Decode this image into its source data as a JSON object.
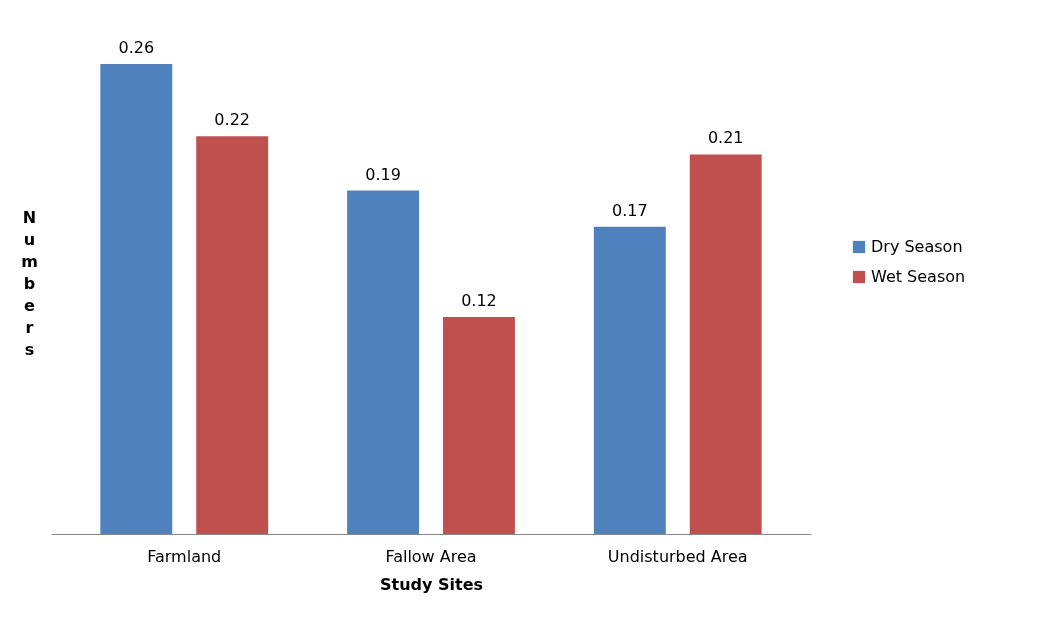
{
  "chart_data": {
    "type": "bar",
    "xlabel": "Study Sites",
    "ylabel": "Numbers",
    "categories": [
      "Farmland",
      "Fallow Area",
      "Undisturbed Area"
    ],
    "series": [
      {
        "name": "Dry Season",
        "color": "#4f81bd",
        "values": [
          0.26,
          0.19,
          0.17
        ]
      },
      {
        "name": "Wet Season",
        "color": "#c0504d",
        "values": [
          0.22,
          0.12,
          0.21
        ]
      }
    ],
    "data_labels": true,
    "legend": "right",
    "grid": false
  }
}
